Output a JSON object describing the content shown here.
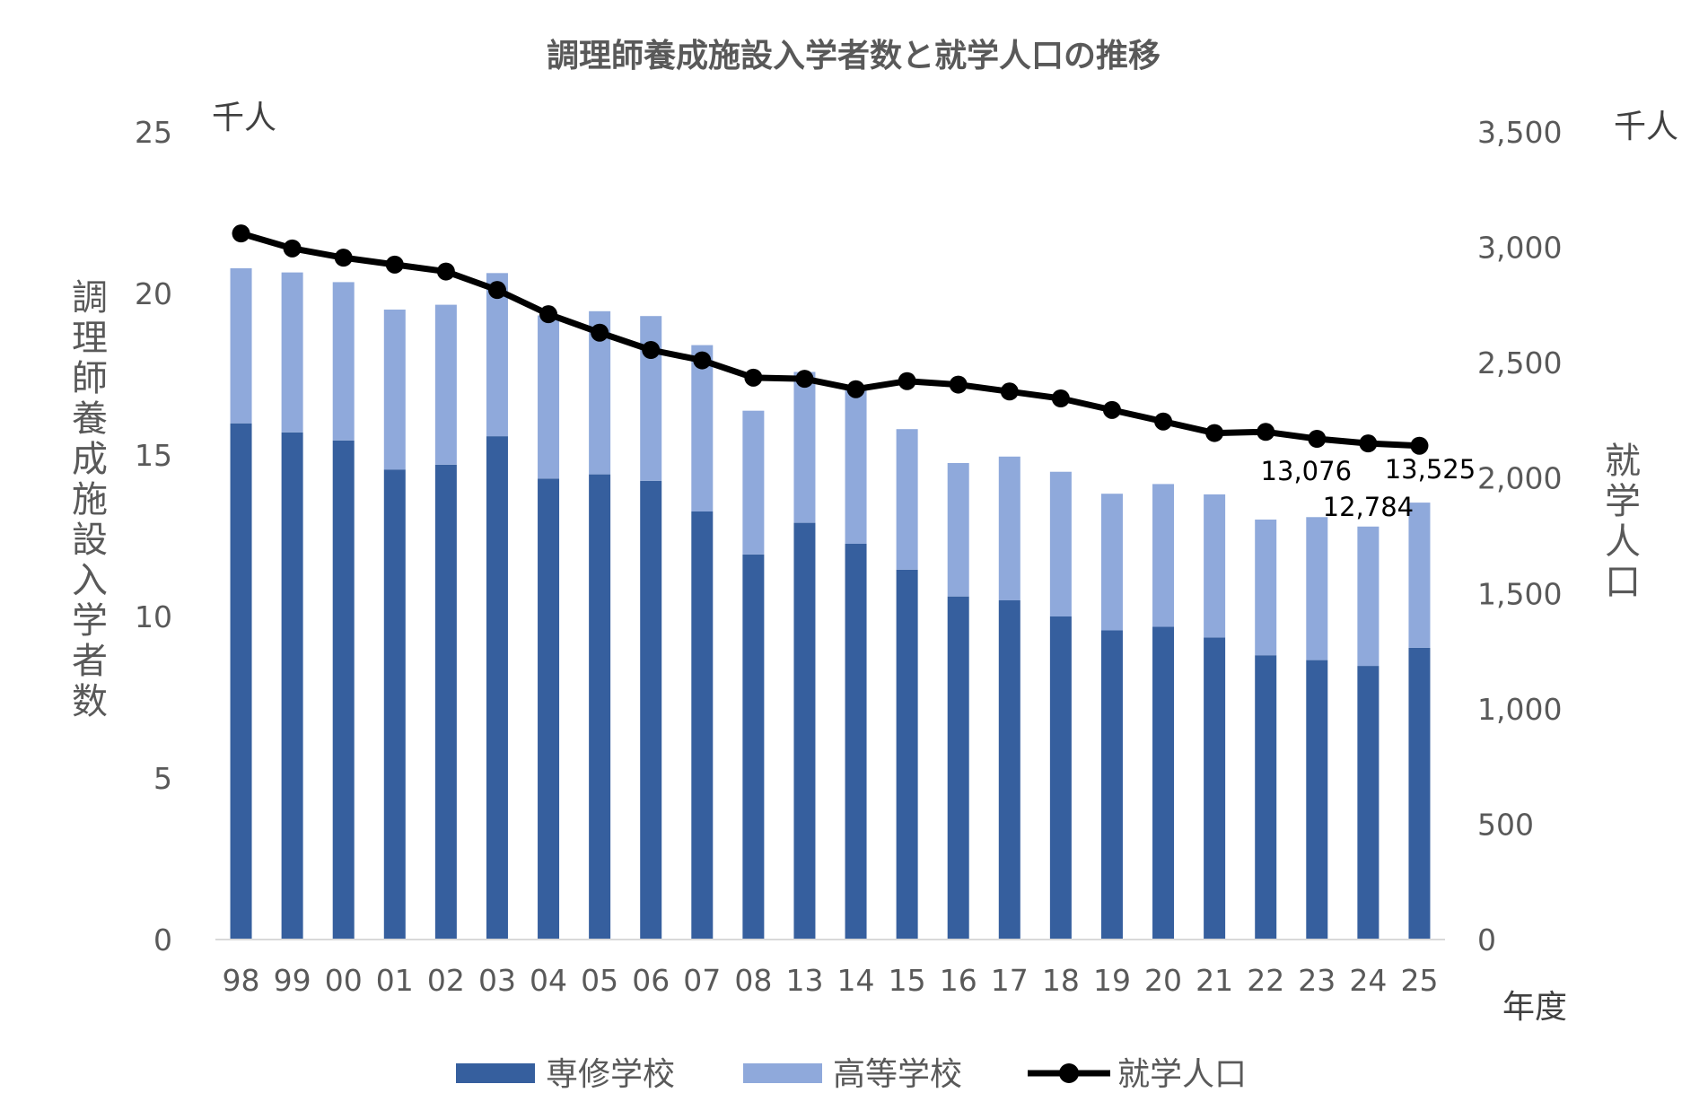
{
  "colors": {
    "senmon": "#365F9E",
    "koto": "#8FA9DB",
    "population": "#000000",
    "text": "#595959",
    "axis": "#d9d9d9"
  },
  "chart_data": {
    "type": "bar",
    "stacked": true,
    "title": "調理師養成施設入学者数と就学人口の推移",
    "categories": [
      "98",
      "99",
      "00",
      "01",
      "02",
      "03",
      "04",
      "05",
      "06",
      "07",
      "08",
      "13",
      "14",
      "15",
      "16",
      "17",
      "18",
      "19",
      "20",
      "21",
      "22",
      "23",
      "24",
      "25"
    ],
    "xlabel": "年度",
    "left_axis": {
      "label": "調理師養成施設入学者数",
      "unit": "千人",
      "ylim": [
        0,
        25
      ],
      "ticks": [
        "0",
        "5",
        "10",
        "15",
        "20",
        "25"
      ]
    },
    "right_axis": {
      "label": "就学人口",
      "unit": "千人",
      "ylim": [
        0,
        3500
      ],
      "ticks": [
        "0",
        "500",
        "1,000",
        "1,500",
        "2,000",
        "2,500",
        "3,000",
        "3,500"
      ]
    },
    "series": [
      {
        "name": "専修学校",
        "kind": "bar",
        "axis": "left",
        "color": "#365F9E",
        "values": [
          15.98,
          15.7,
          15.45,
          14.55,
          14.7,
          15.58,
          14.27,
          14.4,
          14.2,
          13.25,
          11.92,
          12.9,
          12.25,
          11.45,
          10.62,
          10.5,
          10.0,
          9.57,
          9.68,
          9.35,
          8.8,
          8.65,
          8.47,
          9.03
        ]
      },
      {
        "name": "高等学校",
        "kind": "bar",
        "axis": "left",
        "color": "#8FA9DB",
        "values": [
          4.8,
          4.95,
          4.9,
          4.95,
          4.95,
          5.05,
          5.05,
          5.05,
          5.1,
          5.15,
          4.45,
          4.67,
          4.75,
          4.35,
          4.13,
          4.45,
          4.48,
          4.23,
          4.42,
          4.43,
          4.2,
          4.426,
          4.314,
          4.495
        ]
      },
      {
        "name": "就学人口",
        "kind": "line",
        "axis": "right",
        "color": "#000000",
        "values": [
          3060,
          2995,
          2955,
          2925,
          2895,
          2815,
          2710,
          2630,
          2555,
          2510,
          2435,
          2430,
          2385,
          2420,
          2405,
          2375,
          2345,
          2295,
          2245,
          2195,
          2200,
          2170,
          2150,
          2140
        ]
      }
    ],
    "data_labels": [
      {
        "category": "23",
        "text": "13,076"
      },
      {
        "category": "24",
        "text": "12,784"
      },
      {
        "category": "25",
        "text": "13,525"
      }
    ],
    "legend": {
      "position": "bottom",
      "items": [
        "専修学校",
        "高等学校",
        "就学人口"
      ]
    },
    "grid": false
  }
}
